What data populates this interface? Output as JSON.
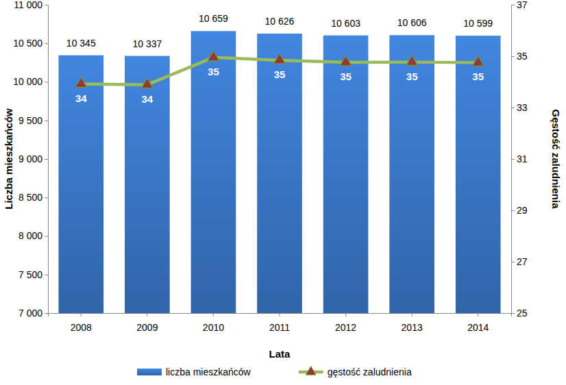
{
  "chart_data": {
    "type": "bar",
    "x_label": "Lata",
    "y_label": "Liczba mieszkańców",
    "y2_label": "Gęstość zaludnienia",
    "categories": [
      "2008",
      "2009",
      "2010",
      "2011",
      "2012",
      "2013",
      "2014"
    ],
    "series": [
      {
        "name": "liczba mieszkańców",
        "type": "bar",
        "color": "#3a78c9",
        "values": [
          10345,
          10337,
          10659,
          10626,
          10603,
          10606,
          10599
        ],
        "value_labels": [
          "10 345",
          "10 337",
          "10 659",
          "10 626",
          "10 603",
          "10 606",
          "10 599"
        ]
      },
      {
        "name": "gęstość zaludnienia",
        "type": "line",
        "axis": "y2",
        "color": "#9bbb59",
        "marker": "triangle",
        "values": [
          33.92,
          33.89,
          34.95,
          34.84,
          34.76,
          34.77,
          34.75
        ],
        "value_labels": [
          "34",
          "34",
          "35",
          "35",
          "35",
          "35",
          "35"
        ]
      }
    ],
    "ylim": [
      7000,
      11000
    ],
    "yticks": [
      {
        "value": 7000,
        "label": "7 000"
      },
      {
        "value": 7500,
        "label": "7 500"
      },
      {
        "value": 8000,
        "label": "8 000"
      },
      {
        "value": 8500,
        "label": "8 500"
      },
      {
        "value": 9000,
        "label": "9 000"
      },
      {
        "value": 9500,
        "label": "9 500"
      },
      {
        "value": 10000,
        "label": "10 000"
      },
      {
        "value": 10500,
        "label": "10 500"
      },
      {
        "value": 11000,
        "label": "11 000"
      }
    ],
    "y2lim": [
      25,
      37
    ],
    "y2ticks": [
      25,
      27,
      29,
      31,
      33,
      35,
      37
    ],
    "grid": false,
    "data_labels": true,
    "legend": "bottom"
  }
}
